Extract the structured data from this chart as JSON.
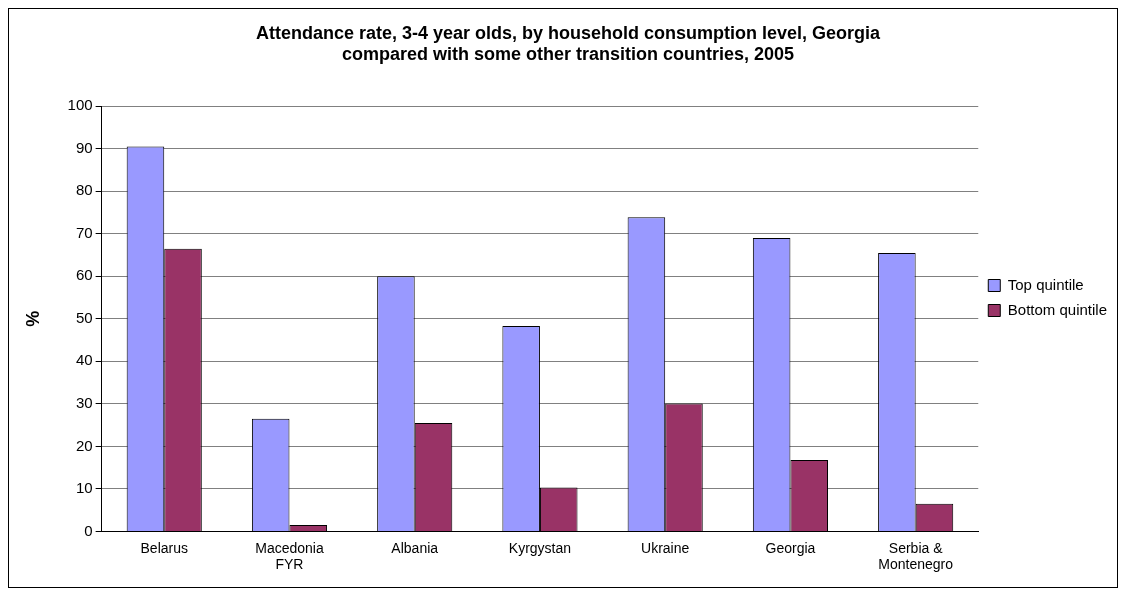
{
  "chart_data": {
    "type": "bar",
    "title": [
      "Attendance rate, 3-4 year olds, by household consumption level, Georgia",
      "compared with some other transition countries, 2005"
    ],
    "ylabel": "%",
    "categories": [
      "Belarus",
      "Macedonia FYR",
      "Albania",
      "Kyrgystan",
      "Ukraine",
      "Georgia",
      "Serbia & Montenegro"
    ],
    "series": [
      {
        "name": "Top quintile",
        "color": "#9999ff",
        "values": [
          90.5,
          26.5,
          60,
          48.3,
          73.9,
          69,
          65.5
        ]
      },
      {
        "name": "Bottom quintile",
        "color": "#993366",
        "values": [
          66.5,
          1.5,
          25.5,
          10.3,
          30.1,
          16.8,
          6.5
        ]
      }
    ],
    "ylim": [
      0,
      100
    ],
    "yticks": [
      0,
      10,
      20,
      30,
      40,
      50,
      60,
      70,
      80,
      90,
      100
    ],
    "grid": "y",
    "legend": "right"
  }
}
